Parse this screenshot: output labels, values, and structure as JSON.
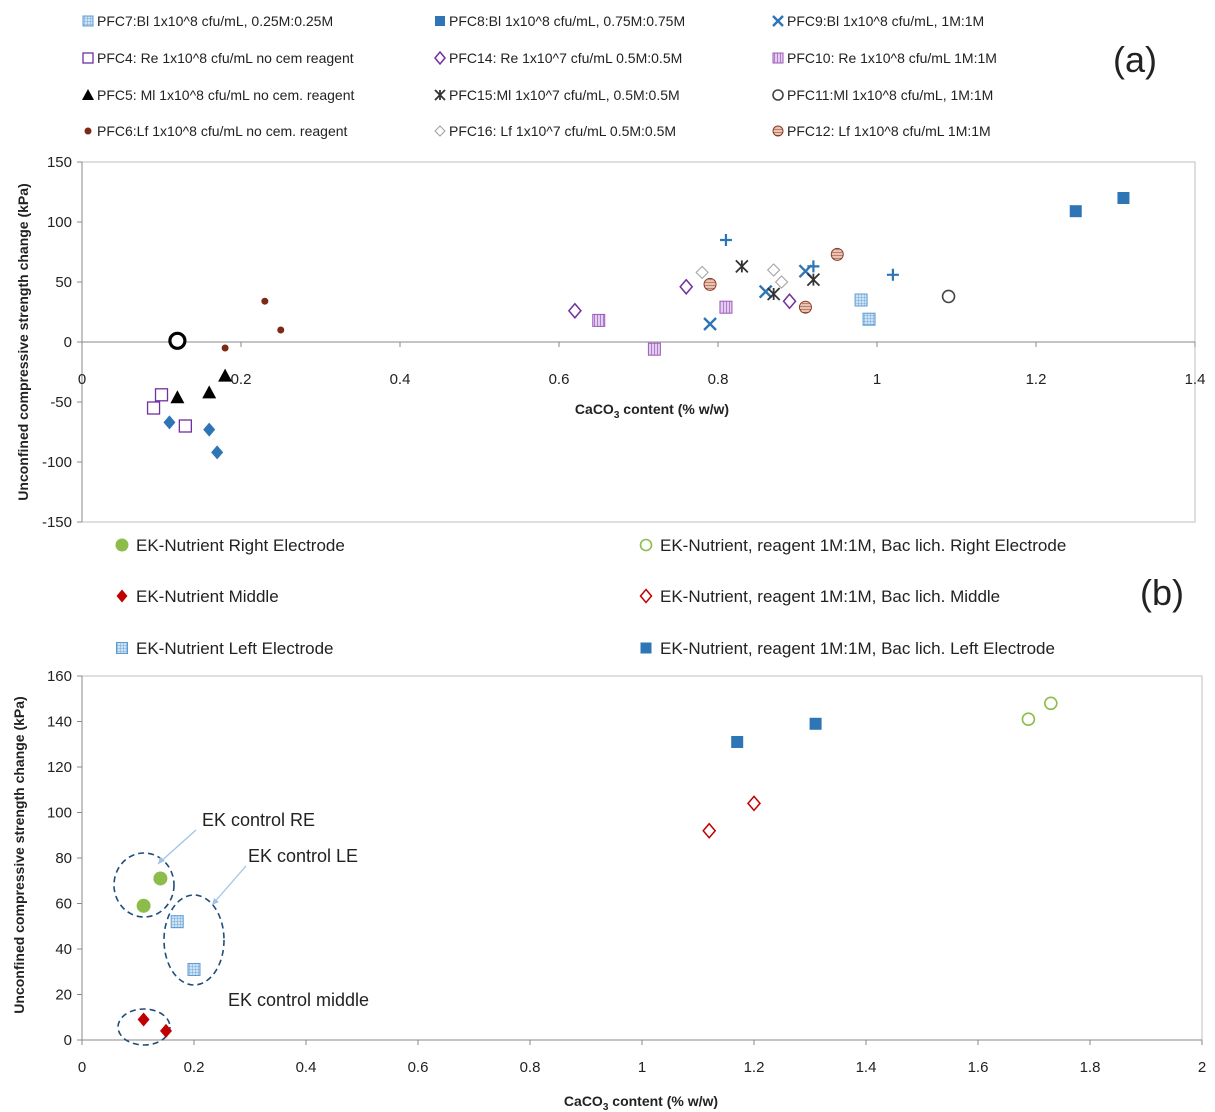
{
  "chart_data": [
    {
      "panel": "(a)",
      "type": "scatter",
      "title": "",
      "xlabel": "CaCO3 content (% w/w)",
      "ylabel": "Unconfined compressive strength change (kPa)",
      "xlim": [
        0,
        1.4
      ],
      "ylim": [
        -150,
        150
      ],
      "xticks": [
        0,
        0.2,
        0.4,
        0.6,
        0.8,
        1,
        1.2,
        1.4
      ],
      "xtick_labels": [
        "0",
        "0.2",
        "0.4",
        "0.6",
        "0.8",
        "1",
        "1.2",
        "1.4"
      ],
      "yticks": [
        -150,
        -100,
        -50,
        0,
        50,
        100,
        150
      ],
      "ytick_labels": [
        "-150",
        "-100",
        "-50",
        "0",
        "50",
        "100",
        "150"
      ],
      "grid": false,
      "legend_position": "top",
      "series": [
        {
          "name": "PFC7:Bl 1x10^8 cfu/mL, 0.25M:0.25M",
          "marker": "grid-square",
          "color": "#9dc3e6",
          "points": [
            [
              0.98,
              35
            ],
            [
              0.99,
              19
            ]
          ]
        },
        {
          "name": "PFC8:Bl 1x10^8 cfu/mL, 0.75M:0.75M",
          "marker": "square",
          "color": "#2e75b6",
          "points": [
            [
              1.25,
              109
            ],
            [
              1.31,
              120
            ]
          ]
        },
        {
          "name": "PFC9:Bl 1x10^8 cfu/mL, 1M:1M",
          "marker": "x",
          "color": "#2e75b6",
          "points": [
            [
              0.79,
              15
            ],
            [
              0.86,
              42
            ],
            [
              0.91,
              59
            ]
          ]
        },
        {
          "name": "PFC4: Re 1x10^8 cfu/mL no cem reagent",
          "marker": "open-square",
          "color": "#7030a0",
          "points": [
            [
              0.1,
              -44
            ],
            [
              0.09,
              -55
            ],
            [
              0.13,
              -70
            ]
          ]
        },
        {
          "name": "PFC14: Re 1x10^7 cfu/mL 0.5M:0.5M",
          "marker": "open-diamond",
          "color": "#7030a0",
          "points": [
            [
              0.62,
              26
            ],
            [
              0.76,
              46
            ],
            [
              0.89,
              34
            ]
          ]
        },
        {
          "name": "PFC10: Re 1x10^8 cfu/mL 1M:1M",
          "marker": "striped-square",
          "color": "#b07cc6",
          "points": [
            [
              0.65,
              18
            ],
            [
              0.72,
              -6
            ],
            [
              0.81,
              29
            ]
          ]
        },
        {
          "name": "PFC5: Ml 1x10^8 cfu/mL no cem. reagent",
          "marker": "triangle",
          "color": "#000000",
          "points": [
            [
              0.12,
              -46
            ],
            [
              0.16,
              -42
            ],
            [
              0.18,
              -28
            ]
          ]
        },
        {
          "name": "PFC15:Ml 1x10^7 cfu/mL, 0.5M:0.5M",
          "marker": "star",
          "color": "#333333",
          "points": [
            [
              0.83,
              63
            ],
            [
              0.87,
              40
            ],
            [
              0.92,
              52
            ]
          ]
        },
        {
          "name": "PFC11:Ml 1x10^8 cfu/mL, 1M:1M",
          "marker": "open-circle",
          "color": "#444444",
          "points": [
            [
              1.09,
              38
            ]
          ]
        },
        {
          "name": "PFC6:Lf 1x10^8 cfu/mL no cem. reagent",
          "marker": "small-dot",
          "color": "#7b2b14",
          "points": [
            [
              0.18,
              -5
            ],
            [
              0.23,
              34
            ],
            [
              0.25,
              10
            ]
          ]
        },
        {
          "name": "PFC16: Lf 1x10^7 cfu/mL 0.5M:0.5M",
          "marker": "small-open-diamond",
          "color": "#a0a0a0",
          "points": [
            [
              0.78,
              58
            ],
            [
              0.87,
              60
            ],
            [
              0.88,
              50
            ]
          ]
        },
        {
          "name": "PFC12: Lf 1x10^8 cfu/mL 1M:1M",
          "marker": "striped-circle",
          "color": "#a0522d",
          "points": [
            [
              0.79,
              48
            ],
            [
              0.91,
              29
            ],
            [
              0.95,
              73
            ]
          ]
        },
        {
          "name": "",
          "marker": "plus",
          "color": "#2e75b6",
          "points": [
            [
              0.81,
              85
            ],
            [
              0.92,
              63
            ],
            [
              1.02,
              56
            ]
          ]
        },
        {
          "name": "",
          "marker": "diamond",
          "color": "#2e75b6",
          "points": [
            [
              0.11,
              -67
            ],
            [
              0.16,
              -73
            ],
            [
              0.17,
              -92
            ]
          ]
        },
        {
          "name": "",
          "marker": "bold-circle",
          "color": "#000000",
          "points": [
            [
              0.12,
              1
            ]
          ]
        }
      ]
    },
    {
      "panel": "(b)",
      "type": "scatter",
      "title": "",
      "xlabel": "CaCO3 content (% w/w)",
      "ylabel": "Unconfined compressive strength change (kPa)",
      "xlim": [
        0,
        2
      ],
      "ylim": [
        0,
        160
      ],
      "xticks": [
        0,
        0.2,
        0.4,
        0.6,
        0.8,
        1,
        1.2,
        1.4,
        1.6,
        1.8,
        2
      ],
      "xtick_labels": [
        "0",
        "0.2",
        "0.4",
        "0.6",
        "0.8",
        "1",
        "1.2",
        "1.4",
        "1.6",
        "1.8",
        "2"
      ],
      "yticks": [
        0,
        20,
        40,
        60,
        80,
        100,
        120,
        140,
        160
      ],
      "ytick_labels": [
        "0",
        "20",
        "40",
        "60",
        "80",
        "100",
        "120",
        "140",
        "160"
      ],
      "grid": false,
      "legend_position": "top",
      "series": [
        {
          "name": "EK-Nutrient Right Electrode",
          "marker": "circle",
          "color": "#8cbd4b",
          "points": [
            [
              0.11,
              59
            ],
            [
              0.14,
              71
            ]
          ]
        },
        {
          "name": "EK-Nutrient, reagent 1M:1M, Bac lich. Right Electrode",
          "marker": "open-circle",
          "color": "#8cbd4b",
          "points": [
            [
              1.69,
              141
            ],
            [
              1.73,
              148
            ]
          ]
        },
        {
          "name": "EK-Nutrient Middle",
          "marker": "diamond",
          "color": "#c00000",
          "points": [
            [
              0.11,
              9
            ],
            [
              0.15,
              4
            ]
          ]
        },
        {
          "name": "EK-Nutrient, reagent 1M:1M, Bac lich. Middle",
          "marker": "open-diamond",
          "color": "#c00000",
          "points": [
            [
              1.12,
              92
            ],
            [
              1.2,
              104
            ]
          ]
        },
        {
          "name": "EK-Nutrient Left Electrode",
          "marker": "grid-square",
          "color": "#9dc3e6",
          "points": [
            [
              0.17,
              52
            ],
            [
              0.2,
              31
            ]
          ]
        },
        {
          "name": "EK-Nutrient, reagent 1M:1M, Bac lich. Left Electrode",
          "marker": "square",
          "color": "#2e75b6",
          "points": [
            [
              1.17,
              131
            ],
            [
              1.31,
              139
            ]
          ]
        }
      ],
      "annotations": [
        {
          "text": "EK control RE"
        },
        {
          "text": "EK control LE"
        },
        {
          "text": "EK control middle"
        }
      ]
    }
  ]
}
